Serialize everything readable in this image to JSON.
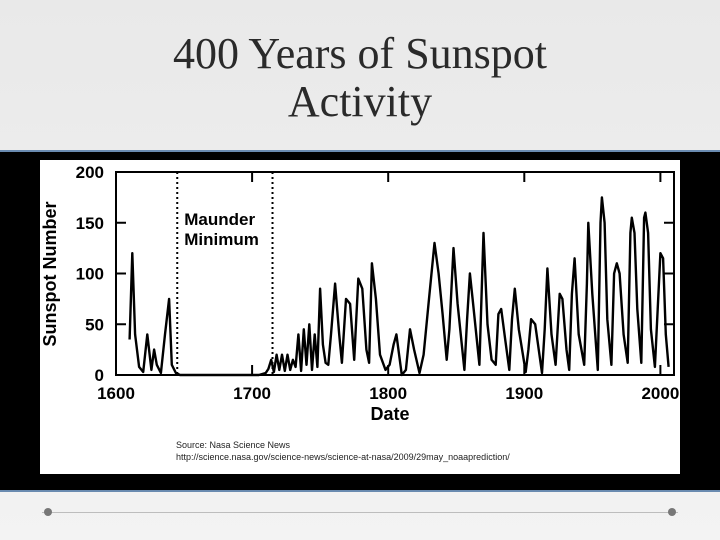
{
  "slide": {
    "title_line1": "400 Years of Sunspot",
    "title_line2": "Activity"
  },
  "colors": {
    "frame": "#000000",
    "frame_border": "#6a8bb0",
    "line": "#000000"
  },
  "chart_data": {
    "type": "line",
    "title": "",
    "xlabel": "Date",
    "ylabel": "Sunspot Number",
    "xlim": [
      1600,
      2010
    ],
    "ylim": [
      0,
      200
    ],
    "xticks": [
      1600,
      1700,
      1800,
      1900,
      2000
    ],
    "yticks": [
      0,
      50,
      100,
      150,
      200
    ],
    "grid": false,
    "annotation": {
      "line1": "Maunder",
      "line2": "Minimum",
      "start_year": 1645,
      "end_year": 1715
    },
    "source_line1": "Source: Nasa Science News",
    "source_line2": "http://science.nasa.gov/science-news/science-at-nasa/2009/29may_noaaprediction/",
    "series": [
      {
        "x": [
          1610,
          1612,
          1614,
          1617,
          1620,
          1623,
          1626,
          1628,
          1630,
          1633,
          1636,
          1639,
          1641,
          1644,
          1647,
          1650,
          1660,
          1670,
          1680,
          1690,
          1700,
          1705,
          1710,
          1712,
          1714,
          1716,
          1718,
          1720,
          1722,
          1724,
          1726,
          1728,
          1730,
          1732,
          1734,
          1736,
          1738,
          1740,
          1742,
          1744,
          1746,
          1748,
          1750,
          1752,
          1754,
          1756,
          1758,
          1761,
          1764,
          1766,
          1769,
          1772,
          1775,
          1778,
          1781,
          1784,
          1786,
          1788,
          1791,
          1794,
          1798,
          1801,
          1804,
          1806,
          1810,
          1813,
          1816,
          1819,
          1823,
          1826,
          1830,
          1834,
          1837,
          1840,
          1843,
          1845,
          1848,
          1851,
          1856,
          1858,
          1860,
          1862,
          1867,
          1870,
          1873,
          1876,
          1879,
          1881,
          1883,
          1886,
          1889,
          1891,
          1893,
          1896,
          1901,
          1903,
          1905,
          1908,
          1913,
          1915,
          1917,
          1920,
          1923,
          1926,
          1928,
          1931,
          1933,
          1935,
          1937,
          1940,
          1944,
          1946,
          1947,
          1950,
          1954,
          1956,
          1957,
          1959,
          1961,
          1964,
          1966,
          1968,
          1970,
          1973,
          1976,
          1978,
          1979,
          1981,
          1983,
          1986,
          1988,
          1989,
          1991,
          1993,
          1996,
          1998,
          2000,
          2002,
          2004,
          2006
        ],
        "y": [
          35,
          120,
          40,
          8,
          3,
          40,
          5,
          25,
          10,
          2,
          40,
          75,
          10,
          2,
          0,
          0,
          0,
          0,
          0,
          0,
          0,
          0,
          2,
          6,
          15,
          3,
          20,
          5,
          20,
          4,
          20,
          5,
          15,
          8,
          40,
          4,
          45,
          10,
          50,
          5,
          40,
          8,
          85,
          30,
          12,
          10,
          40,
          90,
          40,
          12,
          75,
          70,
          15,
          95,
          85,
          25,
          12,
          110,
          75,
          20,
          5,
          10,
          30,
          40,
          0,
          5,
          45,
          25,
          2,
          20,
          75,
          130,
          100,
          60,
          15,
          45,
          125,
          70,
          5,
          55,
          100,
          75,
          10,
          140,
          50,
          15,
          10,
          60,
          65,
          35,
          5,
          55,
          85,
          45,
          3,
          25,
          55,
          50,
          2,
          45,
          105,
          40,
          10,
          80,
          75,
          25,
          5,
          80,
          115,
          40,
          10,
          90,
          150,
          80,
          5,
          150,
          175,
          150,
          55,
          10,
          100,
          110,
          100,
          40,
          12,
          140,
          155,
          140,
          65,
          12,
          155,
          160,
          140,
          45,
          8,
          65,
          120,
          115,
          40,
          8
        ],
        "style": "solid"
      }
    ]
  }
}
